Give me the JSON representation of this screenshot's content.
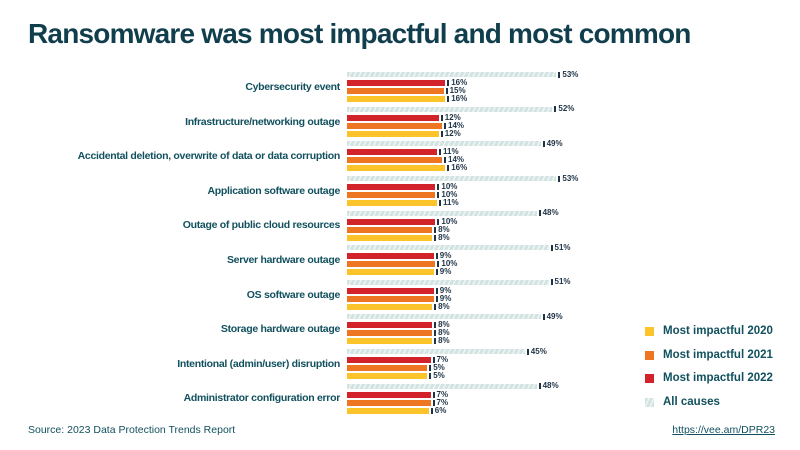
{
  "title": "Ransomware was most impactful and most common",
  "chart_data": {
    "type": "bar",
    "orientation": "horizontal",
    "value_suffix": "%",
    "legend_position": "right",
    "grid": false,
    "categories": [
      "Cybersecurity event",
      "Infrastructure/networking outage",
      "Accidental deletion, overwrite of data or data corruption",
      "Application software outage",
      "Outage of public cloud resources",
      "Server hardware outage",
      "OS software outage",
      "Storage hardware outage",
      "Intentional (admin/user) disruption",
      "Administrator configuration error"
    ],
    "series": [
      {
        "name": "All causes",
        "color": "#d3e3e1",
        "hatched": true,
        "values": [
          53,
          52,
          49,
          53,
          48,
          51,
          51,
          49,
          45,
          48
        ]
      },
      {
        "name": "Most impactful 2022",
        "color": "#d2232a",
        "hatched": false,
        "values": [
          16,
          12,
          11,
          10,
          10,
          9,
          9,
          8,
          7,
          7
        ]
      },
      {
        "name": "Most impactful 2021",
        "color": "#ee7623",
        "hatched": false,
        "values": [
          15,
          14,
          14,
          10,
          8,
          10,
          9,
          8,
          5,
          7
        ]
      },
      {
        "name": "Most impactful 2020",
        "color": "#fdc32b",
        "hatched": false,
        "values": [
          16,
          12,
          16,
          11,
          8,
          9,
          8,
          8,
          5,
          6
        ]
      }
    ]
  },
  "legend": {
    "items": [
      {
        "label": "Most impactful 2020",
        "color": "#fdc32b",
        "hatched": false
      },
      {
        "label": "Most impactful 2021",
        "color": "#ee7623",
        "hatched": false
      },
      {
        "label": "Most impactful 2022",
        "color": "#d2232a",
        "hatched": false
      },
      {
        "label": "All causes",
        "color": "#d3e3e1",
        "hatched": true
      }
    ]
  },
  "footer": {
    "source": "Source: 2023 Data Protection Trends Report",
    "link": "https://vee.am/DPR23"
  },
  "colors": {
    "title_text": "#113e4d",
    "category_text": "#11505e",
    "value_text": "#1e3346",
    "background": "#ffffff"
  }
}
